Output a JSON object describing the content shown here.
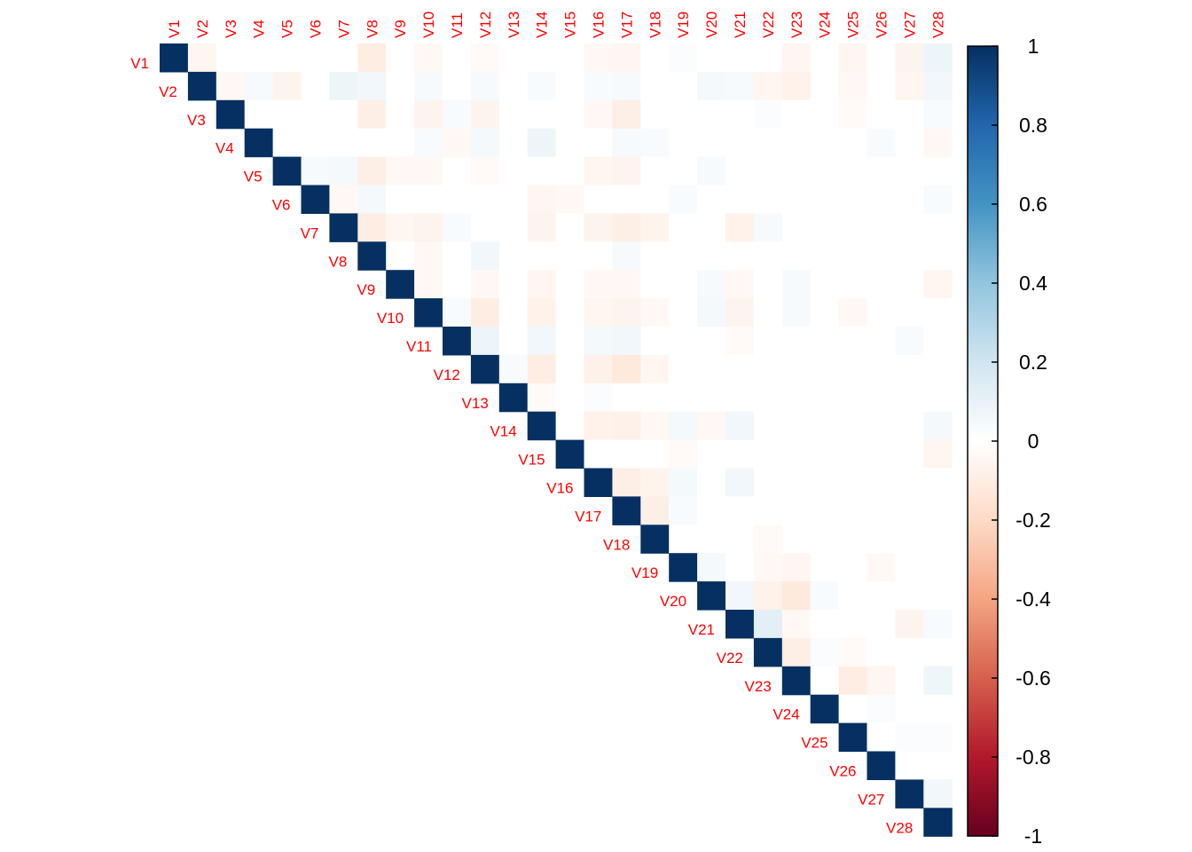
{
  "chart_data": {
    "type": "heatmap",
    "shape": "upper-triangle correlation matrix",
    "title": "",
    "variables": [
      "V1",
      "V2",
      "V3",
      "V4",
      "V5",
      "V6",
      "V7",
      "V8",
      "V9",
      "V10",
      "V11",
      "V12",
      "V13",
      "V14",
      "V15",
      "V16",
      "V17",
      "V18",
      "V19",
      "V20",
      "V21",
      "V22",
      "V23",
      "V24",
      "V25",
      "V26",
      "V27",
      "V28"
    ],
    "label_color": "#FF0000",
    "diagonal_value": 1,
    "default_offdiagonal_value": 0,
    "offdiagonal_values": [
      {
        "row": "V1",
        "col": "V2",
        "value": -0.05
      },
      {
        "row": "V1",
        "col": "V8",
        "value": -0.1
      },
      {
        "row": "V1",
        "col": "V10",
        "value": -0.04
      },
      {
        "row": "V1",
        "col": "V12",
        "value": -0.03
      },
      {
        "row": "V1",
        "col": "V16",
        "value": -0.04
      },
      {
        "row": "V1",
        "col": "V17",
        "value": -0.05
      },
      {
        "row": "V1",
        "col": "V19",
        "value": 0.02
      },
      {
        "row": "V1",
        "col": "V23",
        "value": -0.05
      },
      {
        "row": "V1",
        "col": "V25",
        "value": -0.05
      },
      {
        "row": "V1",
        "col": "V27",
        "value": -0.06
      },
      {
        "row": "V1",
        "col": "V28",
        "value": 0.08
      },
      {
        "row": "V2",
        "col": "V3",
        "value": -0.04
      },
      {
        "row": "V2",
        "col": "V4",
        "value": 0.04
      },
      {
        "row": "V2",
        "col": "V5",
        "value": -0.06
      },
      {
        "row": "V2",
        "col": "V7",
        "value": 0.08
      },
      {
        "row": "V2",
        "col": "V8",
        "value": 0.06
      },
      {
        "row": "V2",
        "col": "V10",
        "value": 0.04
      },
      {
        "row": "V2",
        "col": "V12",
        "value": 0.04
      },
      {
        "row": "V2",
        "col": "V14",
        "value": 0.03
      },
      {
        "row": "V2",
        "col": "V16",
        "value": 0.03
      },
      {
        "row": "V2",
        "col": "V17",
        "value": 0.04
      },
      {
        "row": "V2",
        "col": "V20",
        "value": 0.05
      },
      {
        "row": "V2",
        "col": "V21",
        "value": 0.04
      },
      {
        "row": "V2",
        "col": "V22",
        "value": -0.05
      },
      {
        "row": "V2",
        "col": "V23",
        "value": -0.07
      },
      {
        "row": "V2",
        "col": "V25",
        "value": -0.04
      },
      {
        "row": "V2",
        "col": "V27",
        "value": -0.05
      },
      {
        "row": "V2",
        "col": "V28",
        "value": 0.06
      },
      {
        "row": "V3",
        "col": "V8",
        "value": -0.09
      },
      {
        "row": "V3",
        "col": "V10",
        "value": -0.06
      },
      {
        "row": "V3",
        "col": "V11",
        "value": 0.03
      },
      {
        "row": "V3",
        "col": "V12",
        "value": -0.06
      },
      {
        "row": "V3",
        "col": "V16",
        "value": -0.04
      },
      {
        "row": "V3",
        "col": "V17",
        "value": -0.09
      },
      {
        "row": "V3",
        "col": "V22",
        "value": 0.02
      },
      {
        "row": "V3",
        "col": "V25",
        "value": -0.03
      },
      {
        "row": "V3",
        "col": "V28",
        "value": 0.03
      },
      {
        "row": "V4",
        "col": "V10",
        "value": 0.03
      },
      {
        "row": "V4",
        "col": "V11",
        "value": -0.04
      },
      {
        "row": "V4",
        "col": "V12",
        "value": 0.05
      },
      {
        "row": "V4",
        "col": "V14",
        "value": 0.08
      },
      {
        "row": "V4",
        "col": "V17",
        "value": 0.04
      },
      {
        "row": "V4",
        "col": "V18",
        "value": 0.03
      },
      {
        "row": "V4",
        "col": "V26",
        "value": 0.03
      },
      {
        "row": "V4",
        "col": "V28",
        "value": -0.04
      },
      {
        "row": "V5",
        "col": "V6",
        "value": 0.04
      },
      {
        "row": "V5",
        "col": "V7",
        "value": 0.05
      },
      {
        "row": "V5",
        "col": "V8",
        "value": -0.09
      },
      {
        "row": "V5",
        "col": "V9",
        "value": -0.04
      },
      {
        "row": "V5",
        "col": "V10",
        "value": -0.04
      },
      {
        "row": "V5",
        "col": "V12",
        "value": -0.03
      },
      {
        "row": "V5",
        "col": "V16",
        "value": -0.05
      },
      {
        "row": "V5",
        "col": "V17",
        "value": -0.06
      },
      {
        "row": "V5",
        "col": "V20",
        "value": 0.04
      },
      {
        "row": "V6",
        "col": "V7",
        "value": -0.04
      },
      {
        "row": "V6",
        "col": "V8",
        "value": 0.05
      },
      {
        "row": "V6",
        "col": "V14",
        "value": -0.05
      },
      {
        "row": "V6",
        "col": "V15",
        "value": -0.04
      },
      {
        "row": "V6",
        "col": "V19",
        "value": 0.03
      },
      {
        "row": "V6",
        "col": "V28",
        "value": 0.03
      },
      {
        "row": "V7",
        "col": "V8",
        "value": -0.1
      },
      {
        "row": "V7",
        "col": "V9",
        "value": -0.05
      },
      {
        "row": "V7",
        "col": "V10",
        "value": -0.06
      },
      {
        "row": "V7",
        "col": "V11",
        "value": 0.03
      },
      {
        "row": "V7",
        "col": "V14",
        "value": -0.06
      },
      {
        "row": "V7",
        "col": "V16",
        "value": -0.06
      },
      {
        "row": "V7",
        "col": "V17",
        "value": -0.09
      },
      {
        "row": "V7",
        "col": "V18",
        "value": -0.06
      },
      {
        "row": "V7",
        "col": "V21",
        "value": -0.07
      },
      {
        "row": "V7",
        "col": "V22",
        "value": 0.04
      },
      {
        "row": "V8",
        "col": "V10",
        "value": -0.04
      },
      {
        "row": "V8",
        "col": "V12",
        "value": 0.06
      },
      {
        "row": "V8",
        "col": "V17",
        "value": 0.04
      },
      {
        "row": "V9",
        "col": "V10",
        "value": -0.04
      },
      {
        "row": "V9",
        "col": "V12",
        "value": -0.04
      },
      {
        "row": "V9",
        "col": "V14",
        "value": -0.05
      },
      {
        "row": "V9",
        "col": "V16",
        "value": -0.04
      },
      {
        "row": "V9",
        "col": "V17",
        "value": -0.04
      },
      {
        "row": "V9",
        "col": "V20",
        "value": 0.04
      },
      {
        "row": "V9",
        "col": "V21",
        "value": -0.04
      },
      {
        "row": "V9",
        "col": "V23",
        "value": 0.04
      },
      {
        "row": "V9",
        "col": "V28",
        "value": -0.05
      },
      {
        "row": "V10",
        "col": "V11",
        "value": 0.03
      },
      {
        "row": "V10",
        "col": "V12",
        "value": -0.1
      },
      {
        "row": "V10",
        "col": "V14",
        "value": -0.07
      },
      {
        "row": "V10",
        "col": "V16",
        "value": -0.05
      },
      {
        "row": "V10",
        "col": "V17",
        "value": -0.06
      },
      {
        "row": "V10",
        "col": "V18",
        "value": -0.04
      },
      {
        "row": "V10",
        "col": "V20",
        "value": 0.05
      },
      {
        "row": "V10",
        "col": "V21",
        "value": -0.06
      },
      {
        "row": "V10",
        "col": "V23",
        "value": 0.04
      },
      {
        "row": "V10",
        "col": "V25",
        "value": -0.04
      },
      {
        "row": "V11",
        "col": "V12",
        "value": 0.08
      },
      {
        "row": "V11",
        "col": "V14",
        "value": 0.06
      },
      {
        "row": "V11",
        "col": "V16",
        "value": 0.05
      },
      {
        "row": "V11",
        "col": "V17",
        "value": 0.06
      },
      {
        "row": "V11",
        "col": "V21",
        "value": -0.03
      },
      {
        "row": "V11",
        "col": "V27",
        "value": 0.03
      },
      {
        "row": "V12",
        "col": "V13",
        "value": 0.03
      },
      {
        "row": "V12",
        "col": "V14",
        "value": -0.1
      },
      {
        "row": "V12",
        "col": "V16",
        "value": -0.08
      },
      {
        "row": "V12",
        "col": "V17",
        "value": -0.12
      },
      {
        "row": "V12",
        "col": "V18",
        "value": -0.05
      },
      {
        "row": "V13",
        "col": "V14",
        "value": -0.03
      },
      {
        "row": "V13",
        "col": "V16",
        "value": 0.02
      },
      {
        "row": "V14",
        "col": "V16",
        "value": -0.07
      },
      {
        "row": "V14",
        "col": "V17",
        "value": -0.08
      },
      {
        "row": "V14",
        "col": "V18",
        "value": -0.04
      },
      {
        "row": "V14",
        "col": "V19",
        "value": 0.05
      },
      {
        "row": "V14",
        "col": "V20",
        "value": -0.04
      },
      {
        "row": "V14",
        "col": "V21",
        "value": 0.06
      },
      {
        "row": "V14",
        "col": "V28",
        "value": 0.05
      },
      {
        "row": "V15",
        "col": "V19",
        "value": -0.03
      },
      {
        "row": "V15",
        "col": "V28",
        "value": -0.05
      },
      {
        "row": "V16",
        "col": "V17",
        "value": -0.09
      },
      {
        "row": "V16",
        "col": "V18",
        "value": -0.06
      },
      {
        "row": "V16",
        "col": "V19",
        "value": 0.05
      },
      {
        "row": "V16",
        "col": "V21",
        "value": 0.06
      },
      {
        "row": "V17",
        "col": "V18",
        "value": -0.09
      },
      {
        "row": "V17",
        "col": "V19",
        "value": 0.03
      },
      {
        "row": "V18",
        "col": "V22",
        "value": -0.03
      },
      {
        "row": "V19",
        "col": "V20",
        "value": 0.05
      },
      {
        "row": "V19",
        "col": "V22",
        "value": -0.04
      },
      {
        "row": "V19",
        "col": "V23",
        "value": -0.05
      },
      {
        "row": "V19",
        "col": "V26",
        "value": -0.04
      },
      {
        "row": "V20",
        "col": "V21",
        "value": 0.06
      },
      {
        "row": "V20",
        "col": "V22",
        "value": -0.07
      },
      {
        "row": "V20",
        "col": "V23",
        "value": -0.12
      },
      {
        "row": "V20",
        "col": "V24",
        "value": 0.03
      },
      {
        "row": "V21",
        "col": "V22",
        "value": 0.12
      },
      {
        "row": "V21",
        "col": "V23",
        "value": -0.04
      },
      {
        "row": "V21",
        "col": "V27",
        "value": -0.06
      },
      {
        "row": "V21",
        "col": "V28",
        "value": 0.03
      },
      {
        "row": "V22",
        "col": "V23",
        "value": -0.09
      },
      {
        "row": "V22",
        "col": "V24",
        "value": 0.02
      },
      {
        "row": "V22",
        "col": "V25",
        "value": -0.03
      },
      {
        "row": "V23",
        "col": "V25",
        "value": -0.1
      },
      {
        "row": "V23",
        "col": "V26",
        "value": -0.05
      },
      {
        "row": "V23",
        "col": "V28",
        "value": 0.07
      },
      {
        "row": "V24",
        "col": "V26",
        "value": 0.02
      },
      {
        "row": "V25",
        "col": "V27",
        "value": 0.02
      },
      {
        "row": "V25",
        "col": "V28",
        "value": 0.02
      },
      {
        "row": "V27",
        "col": "V28",
        "value": 0.06
      }
    ],
    "colorbar": {
      "range": [
        -1,
        1
      ],
      "tick_labels": [
        "1",
        "0.8",
        "0.6",
        "0.4",
        "0.2",
        "0",
        "-0.2",
        "-0.4",
        "-0.6",
        "-0.8",
        "-1"
      ],
      "colors_low_to_high": [
        "#67001F",
        "#B2182B",
        "#D6604D",
        "#F4A582",
        "#FDDBC7",
        "#FFFFFF",
        "#D1E5F0",
        "#92C5DE",
        "#4393C3",
        "#2166AC",
        "#053061"
      ]
    },
    "grid": false,
    "legend_position": "right"
  }
}
